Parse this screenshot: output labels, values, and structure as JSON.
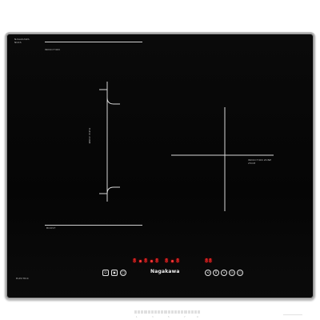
{
  "cooktop": {
    "brand": "Nagakawa",
    "badge": "INVERTER",
    "top_left_label": "INDUCTION",
    "left_zone_label": "FLEXI ZONE",
    "left_bottom_label": "BOOST",
    "right_zone_label": "INDUCTION ZONE",
    "bottom_left_label": "ELECTRIC",
    "displays": {
      "d1": "8",
      "d2": "8",
      "d3": "8",
      "d4": "8",
      "d5": "8",
      "d6": "88"
    },
    "slider_labels": [
      "1",
      "3",
      "5",
      "7",
      "9"
    ]
  },
  "icons": [
    "power-icon",
    "lock-icon",
    "timer-icon",
    "boost-icon",
    "pause-icon",
    "plus-icon",
    "clock-icon",
    "circle-icon"
  ],
  "colors": {
    "glass": "#070707",
    "frame": "#b9b9b9",
    "display_red": "#ff2a2a",
    "markings": "#d6d6d6"
  }
}
